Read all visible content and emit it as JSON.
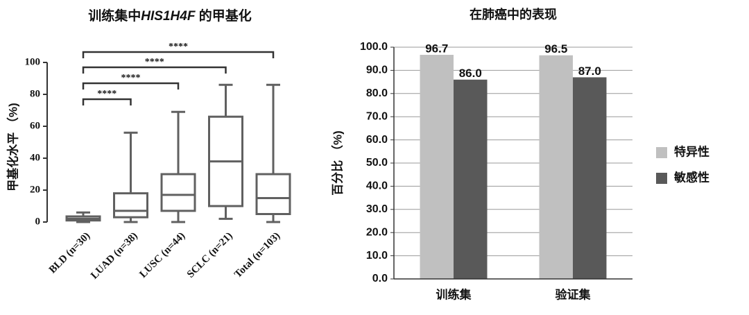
{
  "chart_data": [
    {
      "type": "box",
      "title": [
        "训练集中",
        "HIS1H4F",
        " 的甲基化"
      ],
      "ylabel": "甲基化水平 （%)",
      "categories": [
        "BLD (n=30)",
        "LUAD (n=38)",
        "LUSC (n=44)",
        "SCLC (n=21)",
        "Total (n=103)"
      ],
      "boxes": [
        {
          "min": 0,
          "q1": 1,
          "median": 2,
          "q3": 3.5,
          "max": 6
        },
        {
          "min": 0,
          "q1": 3,
          "median": 7,
          "q3": 18,
          "max": 56
        },
        {
          "min": 0,
          "q1": 7,
          "median": 17,
          "q3": 30,
          "max": 69
        },
        {
          "min": 2,
          "q1": 10,
          "median": 38,
          "q3": 66,
          "max": 86
        },
        {
          "min": 0,
          "q1": 5,
          "median": 15,
          "q3": 30,
          "max": 86
        }
      ],
      "color": "#606060",
      "ylim": [
        0,
        100
      ],
      "yticks": [
        0,
        20,
        40,
        60,
        80,
        100
      ],
      "annotations": [
        {
          "from": 0,
          "to": 1,
          "label": "****"
        },
        {
          "from": 0,
          "to": 2,
          "label": "****"
        },
        {
          "from": 0,
          "to": 3,
          "label": "****"
        },
        {
          "from": 0,
          "to": 4,
          "label": "****"
        }
      ]
    },
    {
      "type": "bar",
      "title": "在肺癌中的表现",
      "ylabel": "百分比 （%)",
      "categories": [
        "训练集",
        "验证集"
      ],
      "series": [
        {
          "name": "特异性",
          "color": "#c0c0c0",
          "values": [
            96.7,
            96.5
          ],
          "value_labels": [
            "96.7",
            "96.5"
          ]
        },
        {
          "name": "敏感性",
          "color": "#595959",
          "values": [
            86.0,
            87.0
          ],
          "value_labels": [
            "86.0",
            "87.0"
          ]
        }
      ],
      "ylim": [
        0,
        100
      ],
      "yticks": [
        {
          "value": 0,
          "label": "0.0"
        },
        {
          "value": 10,
          "label": "10.0"
        },
        {
          "value": 20,
          "label": "20.0"
        },
        {
          "value": 30,
          "label": "30.0"
        },
        {
          "value": 40,
          "label": "40.0"
        },
        {
          "value": 50,
          "label": "50.0"
        },
        {
          "value": 60,
          "label": "60.0"
        },
        {
          "value": 70,
          "label": "70.0"
        },
        {
          "value": 80,
          "label": "80.0"
        },
        {
          "value": 90,
          "label": "90.0"
        },
        {
          "value": 100,
          "label": "100.0"
        }
      ],
      "grid": true,
      "legend": "right"
    }
  ]
}
